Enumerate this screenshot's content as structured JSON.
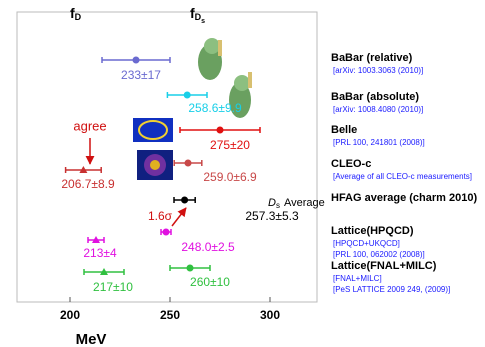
{
  "chart_data": {
    "type": "scatter",
    "xlabel": "MeV",
    "xlim": [
      173.5,
      323.5
    ],
    "xticks": [
      200,
      250,
      300
    ],
    "column_labels": [
      {
        "symbol": "f",
        "sub": "D"
      },
      {
        "symbol": "f",
        "sub": "D",
        "subsub": "s"
      }
    ],
    "points": [
      {
        "value": 233,
        "error": 17,
        "value_label": "233±17",
        "color": "#6a6ad0",
        "marker": "circle"
      },
      {
        "value": 258.6,
        "error": 9.9,
        "value_label": "258.6±9.9",
        "color": "#18cfe8",
        "marker": "circle"
      },
      {
        "value": 275,
        "error": 20,
        "value_label": "275±20",
        "color": "#e01010",
        "marker": "circle"
      },
      {
        "value": 259.0,
        "error": 6.9,
        "value_label": "259.0±6.9",
        "color": "#c84848",
        "marker": "circle"
      },
      {
        "value": 206.7,
        "error": 8.9,
        "value_label": "206.7±8.9",
        "color": "#c83030",
        "marker": "triangle"
      },
      {
        "value": 257.3,
        "error": 5.3,
        "value_label": "257.3±5.3",
        "color": "#000000",
        "marker": "circle"
      },
      {
        "value": 248.0,
        "error": 2.5,
        "value_label": "248.0±2.5",
        "color": "#e010e0",
        "marker": "circle"
      },
      {
        "value": 213,
        "error": 4,
        "value_label": "213±4",
        "color": "#e010e0",
        "marker": "triangle"
      },
      {
        "value": 260,
        "error": 10,
        "value_label": "260±10",
        "color": "#30c040",
        "marker": "circle"
      },
      {
        "value": 217,
        "error": 10,
        "value_label": "217±10",
        "color": "#30c040",
        "marker": "triangle"
      }
    ],
    "annotations": {
      "agree": "agree",
      "sigma": "1.6σ",
      "average": {
        "symbol": "D",
        "sub": "s",
        "text": "Average"
      }
    },
    "groups": [
      {
        "name": "BaBar (relative)",
        "refs": [
          "[arXiv: 1003.3063 (2010)]"
        ]
      },
      {
        "name": "BaBar (absolute)",
        "refs": [
          "[arXiv: 1008.4080 (2010)]"
        ]
      },
      {
        "name": "Belle",
        "refs": [
          "[PRL 100, 241801 (2008)]"
        ]
      },
      {
        "name": "CLEO-c",
        "refs": [
          "[Average of all CLEO-c measurements]"
        ]
      },
      {
        "name": "HFAG average (charm 2010)",
        "refs": []
      },
      {
        "name": "Lattice(HPQCD)",
        "refs": [
          "[HPQCD+UKQCD]",
          "[PRL 100, 062002 (2008)]"
        ]
      },
      {
        "name": "Lattice(FNAL+MILC)",
        "refs": [
          "[FNAL+MILC]",
          "[PeS LATTICE 2009 249, (2009)]"
        ]
      }
    ]
  }
}
